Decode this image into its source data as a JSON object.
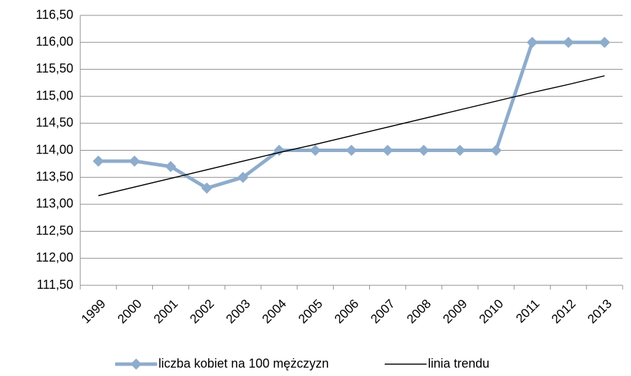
{
  "chart_data": {
    "type": "line",
    "categories": [
      "1999",
      "2000",
      "2001",
      "2002",
      "2003",
      "2004",
      "2005",
      "2006",
      "2007",
      "2008",
      "2009",
      "2010",
      "2011",
      "2012",
      "2013"
    ],
    "series": [
      {
        "name": "liczba kobiet na 100 mężczyzn",
        "color": "#8eaccb",
        "marker": "diamond",
        "values": [
          113.8,
          113.8,
          113.7,
          113.3,
          113.5,
          114,
          114,
          114,
          114,
          114,
          114,
          114,
          116,
          116,
          116
        ]
      },
      {
        "name": "linia trendu",
        "color": "#000000",
        "marker": "none",
        "values": [
          113.16,
          113.32,
          113.48,
          113.64,
          113.8,
          113.96,
          114.11,
          114.27,
          114.43,
          114.59,
          114.75,
          114.91,
          115.07,
          115.22,
          115.38
        ]
      }
    ],
    "ylim": [
      111.5,
      116.5
    ],
    "yticks": [
      {
        "value": 111.5,
        "label": "111,50"
      },
      {
        "value": 112,
        "label": "112,00"
      },
      {
        "value": 112.5,
        "label": "112,50"
      },
      {
        "value": 113,
        "label": "113,00"
      },
      {
        "value": 113.5,
        "label": "113,50"
      },
      {
        "value": 114,
        "label": "114,00"
      },
      {
        "value": 114.5,
        "label": "114,50"
      },
      {
        "value": 115,
        "label": "115,00"
      },
      {
        "value": 115.5,
        "label": "115,50"
      },
      {
        "value": 116,
        "label": "116,00"
      },
      {
        "value": 116.5,
        "label": "116,50"
      }
    ],
    "grid": true,
    "legend": "bottom"
  }
}
